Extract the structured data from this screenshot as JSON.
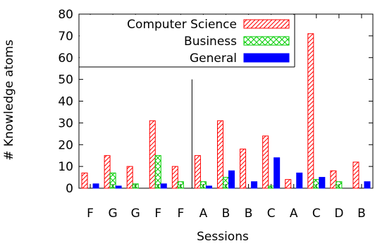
{
  "chart_data": {
    "type": "bar",
    "xlabel": "Sessions",
    "ylabel": "# Knowledge atoms",
    "ylim": [
      0,
      80
    ],
    "yticks": [
      0,
      10,
      20,
      30,
      40,
      50,
      60,
      70,
      80
    ],
    "categories": [
      "F",
      "G",
      "G",
      "F",
      "F",
      "A",
      "B",
      "B",
      "C",
      "A",
      "C",
      "D",
      "B"
    ],
    "separator_after_index": 4,
    "legend_position": "top-left",
    "series": [
      {
        "name": "Computer Science",
        "values": [
          7,
          15,
          10,
          31,
          10,
          15,
          31,
          18,
          24,
          4,
          71,
          8,
          12
        ],
        "color": "#ff0000",
        "pattern": "diagonal-hatch"
      },
      {
        "name": "Business",
        "values": [
          0,
          7,
          2,
          15,
          3,
          3,
          5,
          0,
          1,
          0,
          4,
          3,
          0
        ],
        "color": "#00cc00",
        "pattern": "cross-hatch"
      },
      {
        "name": "General",
        "values": [
          2,
          1,
          0,
          2,
          0,
          1,
          8,
          3,
          14,
          7,
          5,
          0,
          3
        ],
        "color": "#0000ff",
        "pattern": "solid"
      }
    ]
  }
}
